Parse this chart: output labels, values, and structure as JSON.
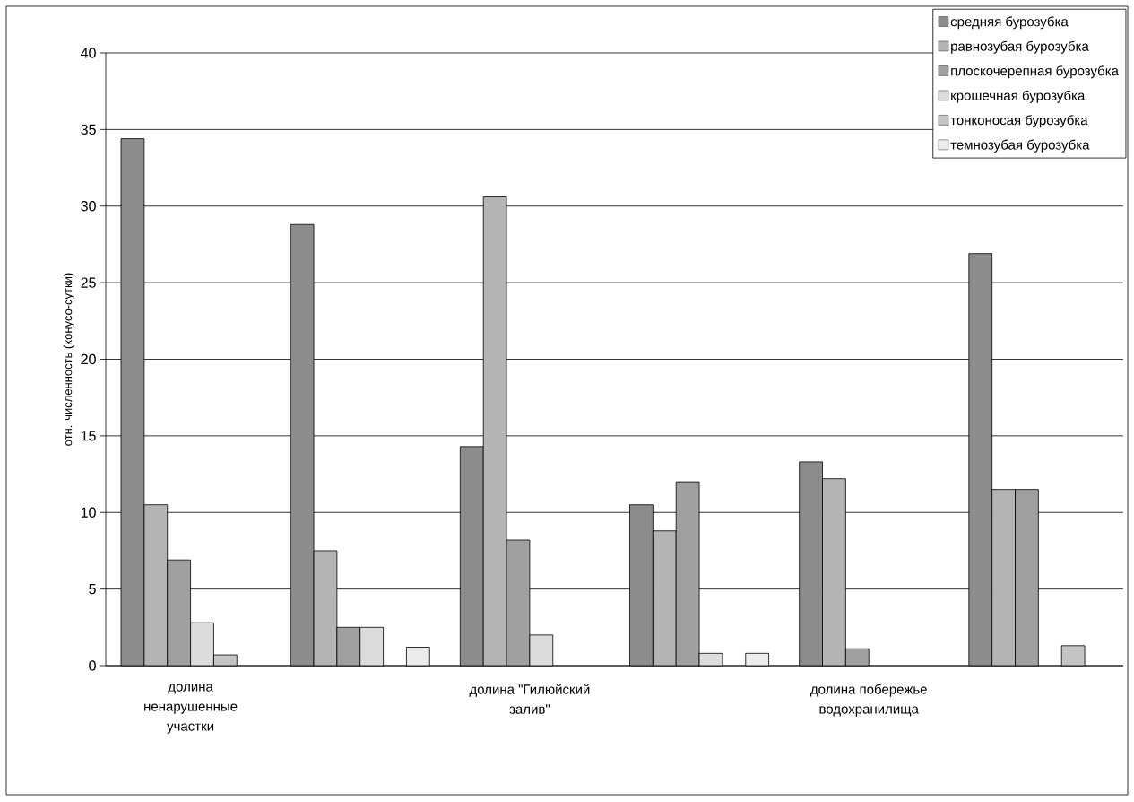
{
  "chart_data": {
    "type": "bar",
    "ylabel": "отн. численность (конусо-сутки)",
    "categories": [
      "долина ненарушенные участки",
      null,
      "долина \"Гилюйский залив\"",
      null,
      "долина побережье водохранилища",
      null
    ],
    "series": [
      {
        "name": "средняя бурозубка",
        "color": "#8c8c8c",
        "values": [
          34.4,
          28.8,
          14.3,
          10.5,
          13.3,
          26.9
        ]
      },
      {
        "name": "равнозубая бурозубка",
        "color": "#b4b4b4",
        "values": [
          10.5,
          7.5,
          30.6,
          8.8,
          12.2,
          11.5
        ]
      },
      {
        "name": "плоскочерепная бурозубка",
        "color": "#a0a0a0",
        "values": [
          6.9,
          2.5,
          8.2,
          12.0,
          1.1,
          11.5
        ]
      },
      {
        "name": "крошечная бурозубка",
        "color": "#dcdcdc",
        "values": [
          2.8,
          2.5,
          2.0,
          0.8,
          null,
          null
        ]
      },
      {
        "name": "тонконосая бурозубка",
        "color": "#c4c4c4",
        "values": [
          0.7,
          null,
          null,
          null,
          null,
          1.3
        ]
      },
      {
        "name": "темнозубая бурозубка",
        "color": "#ececec",
        "values": [
          null,
          1.2,
          null,
          0.8,
          null,
          null
        ]
      }
    ],
    "ylim": [
      0,
      40
    ],
    "yticks": [
      0,
      5,
      10,
      15,
      20,
      25,
      30,
      35,
      40
    ],
    "grid": "y",
    "legend": "top right"
  }
}
